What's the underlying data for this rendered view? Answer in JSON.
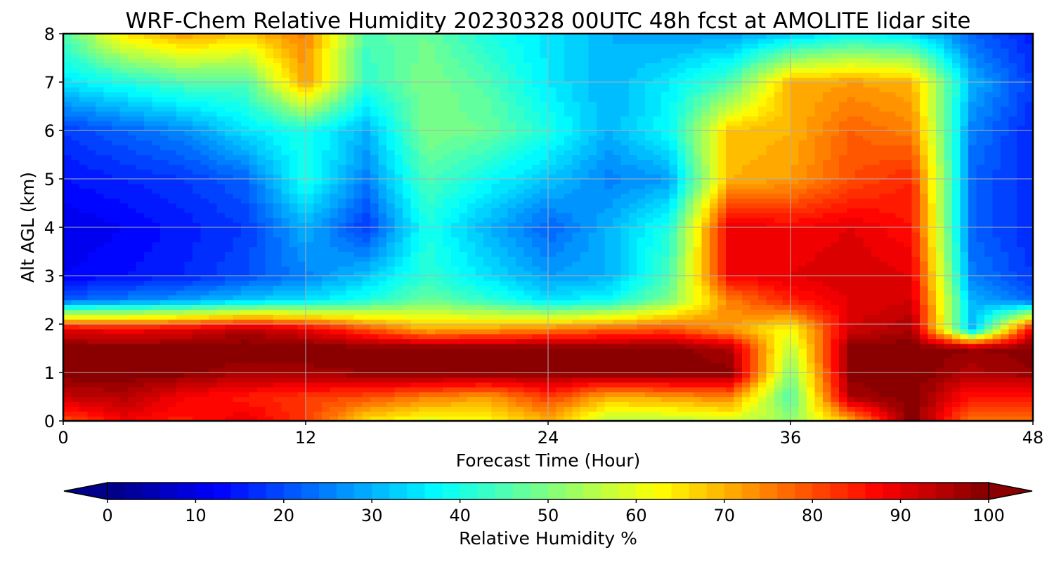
{
  "chart_data": {
    "type": "heatmap",
    "title": "WRF-Chem Relative Humidity 20230328 00UTC 48h fcst at AMOLITE lidar site",
    "xlabel": "Forecast Time (Hour)",
    "ylabel": "Alt AGL (km)",
    "xlim": [
      0,
      48
    ],
    "ylim": [
      0,
      8
    ],
    "xticks": [
      0,
      12,
      24,
      36,
      48
    ],
    "yticks": [
      0,
      1,
      2,
      3,
      4,
      5,
      6,
      7,
      8
    ],
    "grid": true,
    "colorscale": "jet",
    "colorbar": {
      "label": "Relative Humidity %",
      "range": [
        0,
        100
      ],
      "ticks": [
        0,
        10,
        20,
        30,
        40,
        50,
        60,
        70,
        80,
        90,
        100
      ],
      "orientation": "horizontal",
      "extend": "both"
    },
    "x": [
      0,
      3,
      6,
      9,
      12,
      15,
      18,
      21,
      24,
      27,
      30,
      33,
      36,
      39,
      42,
      45,
      48
    ],
    "y": [
      0,
      0.5,
      1,
      1.5,
      1.9,
      2.5,
      3,
      4,
      5,
      6,
      7,
      8
    ],
    "z": [
      [
        80,
        88,
        85,
        90,
        82,
        65,
        60,
        62,
        70,
        55,
        55,
        58,
        52,
        70,
        100,
        75,
        75
      ],
      [
        93,
        95,
        88,
        85,
        82,
        80,
        75,
        72,
        82,
        70,
        72,
        75,
        45,
        96,
        100,
        85,
        85
      ],
      [
        100,
        100,
        99,
        96,
        97,
        98,
        100,
        99,
        98,
        99,
        100,
        99,
        50,
        99,
        100,
        95,
        98
      ],
      [
        100,
        100,
        100,
        100,
        100,
        100,
        100,
        100,
        100,
        100,
        100,
        95,
        55,
        99,
        100,
        98,
        99
      ],
      [
        90,
        88,
        90,
        95,
        90,
        80,
        70,
        72,
        75,
        78,
        80,
        72,
        62,
        92,
        96,
        30,
        90
      ],
      [
        22,
        25,
        28,
        32,
        35,
        40,
        48,
        42,
        35,
        38,
        50,
        75,
        85,
        90,
        92,
        30,
        22
      ],
      [
        12,
        14,
        16,
        20,
        25,
        32,
        42,
        35,
        28,
        30,
        45,
        88,
        90,
        92,
        90,
        25,
        18
      ],
      [
        10,
        12,
        15,
        18,
        30,
        18,
        40,
        30,
        22,
        30,
        40,
        90,
        88,
        90,
        86,
        22,
        16
      ],
      [
        14,
        16,
        18,
        22,
        40,
        25,
        45,
        38,
        32,
        25,
        28,
        70,
        72,
        80,
        84,
        22,
        16
      ],
      [
        18,
        22,
        26,
        35,
        40,
        30,
        50,
        48,
        40,
        30,
        38,
        68,
        70,
        78,
        75,
        25,
        16
      ],
      [
        35,
        40,
        45,
        45,
        72,
        42,
        50,
        45,
        36,
        30,
        36,
        45,
        70,
        72,
        70,
        30,
        18
      ],
      [
        45,
        65,
        72,
        68,
        75,
        45,
        48,
        40,
        35,
        30,
        28,
        28,
        32,
        38,
        35,
        22,
        15
      ]
    ]
  }
}
